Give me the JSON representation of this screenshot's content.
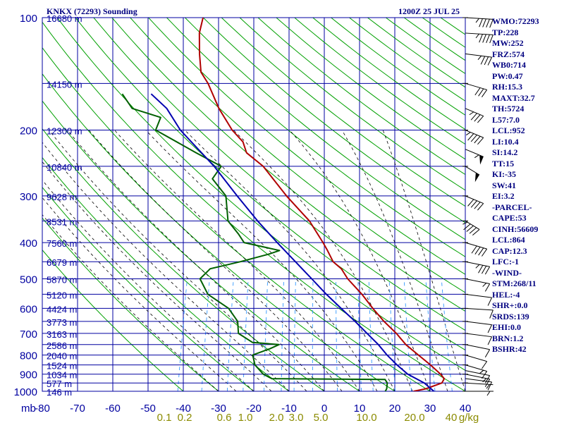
{
  "header": {
    "station": "KNKX (72293) Sounding",
    "datetime": "1200Z 25 JUL 25"
  },
  "colors": {
    "isobar": "#0000a0",
    "temperature": "#b00000",
    "dewpoint": "#006000",
    "parcel": "#0000b0",
    "dry_adiabat": "#00a000",
    "moist_adiabat": "#000000",
    "mixing_ratio": "#3399ff",
    "index_text": "#000080"
  },
  "indices": [
    "WMO:72293",
    "TP:228",
    "MW:252",
    "FRZ:574",
    "WB0:714",
    "PW:0.47",
    "RH:15.3",
    "MAXT:32.7",
    "TH:5724",
    "L57:7.0",
    "LCL:952",
    "LI:10.4",
    "SI:14.2",
    "TT:15",
    "KI:-35",
    "SW:41",
    "EI:3.2",
    "-PARCEL-",
    "CAPE:53",
    "CINH:56609",
    "LCL:864",
    "CAP:12.3",
    "LFC:-1",
    "-WIND-",
    "STM:268/11",
    "HEL:-4",
    "SHR+:0.0",
    "SRDS:139",
    "EHI:0.0",
    "BRN:1.2",
    "BSHR:42"
  ],
  "chart_data": {
    "type": "line",
    "title": "KNKX (72293) Sounding",
    "subtitle": "1200Z 25 JUL 25",
    "xlabel": "",
    "ylabel": "mb",
    "x_unit_right": "g/kg",
    "y_scale": "log",
    "y_reversed": true,
    "xlim": [
      -80,
      40
    ],
    "ylim": [
      1000,
      100
    ],
    "skew_per_log_pressure": 0.25,
    "pressure_ticks": [
      100,
      200,
      300,
      400,
      500,
      600,
      700,
      800,
      900,
      1000
    ],
    "temperature_ticks": [
      -80,
      -70,
      -60,
      -50,
      -40,
      -30,
      -20,
      -10,
      0,
      10,
      20,
      30,
      40
    ],
    "height_labels": [
      {
        "p": 100,
        "label": "16680 m"
      },
      {
        "p": 150,
        "label": "14150 m"
      },
      {
        "p": 200,
        "label": "12300 m"
      },
      {
        "p": 250,
        "label": "10840 m"
      },
      {
        "p": 300,
        "label": "9628 m"
      },
      {
        "p": 350,
        "label": "8531 m"
      },
      {
        "p": 400,
        "label": "7560 m"
      },
      {
        "p": 450,
        "label": "6679 m"
      },
      {
        "p": 500,
        "label": "5870 m"
      },
      {
        "p": 550,
        "label": "5120 m"
      },
      {
        "p": 600,
        "label": "4424 m"
      },
      {
        "p": 650,
        "label": "3773 m"
      },
      {
        "p": 700,
        "label": "3163 m"
      },
      {
        "p": 750,
        "label": "2586 m"
      },
      {
        "p": 800,
        "label": "2040 m"
      },
      {
        "p": 850,
        "label": "1524 m"
      },
      {
        "p": 900,
        "label": "1034 m"
      },
      {
        "p": 950,
        "label": "577 m"
      },
      {
        "p": 1000,
        "label": "146 m"
      }
    ],
    "mixing_ratio_labels": [
      "0.1",
      "0.2",
      "0.6",
      "1.0",
      "2.0",
      "3.0",
      "5.0",
      "10.0",
      "20.0",
      "40",
      "g/kg"
    ],
    "series": [
      {
        "name": "",
        "role": "temperature",
        "points": [
          {
            "p": 1000,
            "t": 25.3
          },
          {
            "p": 985,
            "t": 28.6
          },
          {
            "p": 950,
            "t": 32.7
          },
          {
            "p": 925,
            "t": 33.0
          },
          {
            "p": 900,
            "t": 31.6
          },
          {
            "p": 850,
            "t": 28.0
          },
          {
            "p": 800,
            "t": 23.8
          },
          {
            "p": 750,
            "t": 19.4
          },
          {
            "p": 700,
            "t": 15.8
          },
          {
            "p": 650,
            "t": 11.3
          },
          {
            "p": 600,
            "t": 7.1
          },
          {
            "p": 550,
            "t": 2.9
          },
          {
            "p": 500,
            "t": -2.4
          },
          {
            "p": 470,
            "t": -5.0
          },
          {
            "p": 450,
            "t": -7.9
          },
          {
            "p": 420,
            "t": -10.4
          },
          {
            "p": 400,
            "t": -12.3
          },
          {
            "p": 350,
            "t": -17.9
          },
          {
            "p": 300,
            "t": -26.4
          },
          {
            "p": 250,
            "t": -35.4
          },
          {
            "p": 230,
            "t": -41.2
          },
          {
            "p": 215,
            "t": -43.1
          },
          {
            "p": 200,
            "t": -47.1
          },
          {
            "p": 175,
            "t": -52.6
          },
          {
            "p": 150,
            "t": -57.7
          },
          {
            "p": 140,
            "t": -60.6
          },
          {
            "p": 125,
            "t": -62.5
          },
          {
            "p": 110,
            "t": -64.2
          },
          {
            "p": 100,
            "t": -64.4
          }
        ]
      },
      {
        "name": "",
        "role": "dewpoint",
        "points": [
          {
            "p": 1000,
            "t": 17.3
          },
          {
            "p": 985,
            "t": 17.5
          },
          {
            "p": 950,
            "t": 17.2
          },
          {
            "p": 930,
            "t": 16.3
          },
          {
            "p": 925,
            "t": -15.9
          },
          {
            "p": 900,
            "t": -18.7
          },
          {
            "p": 850,
            "t": -21.8
          },
          {
            "p": 800,
            "t": -23.2
          },
          {
            "p": 770,
            "t": -18.9
          },
          {
            "p": 750,
            "t": -16.6
          },
          {
            "p": 740,
            "t": -24.3
          },
          {
            "p": 700,
            "t": -29.0
          },
          {
            "p": 650,
            "t": -30.2
          },
          {
            "p": 600,
            "t": -33.8
          },
          {
            "p": 550,
            "t": -40.8
          },
          {
            "p": 500,
            "t": -44.3
          },
          {
            "p": 470,
            "t": -42.2
          },
          {
            "p": 450,
            "t": -34.2
          },
          {
            "p": 430,
            "t": -26.9
          },
          {
            "p": 420,
            "t": -24.0
          },
          {
            "p": 400,
            "t": -34.7
          },
          {
            "p": 380,
            "t": -36.9
          },
          {
            "p": 350,
            "t": -41.0
          },
          {
            "p": 300,
            "t": -43.6
          },
          {
            "p": 270,
            "t": -48.8
          },
          {
            "p": 250,
            "t": -47.3
          },
          {
            "p": 230,
            "t": -55.5
          },
          {
            "p": 200,
            "t": -68.8
          },
          {
            "p": 185,
            "t": -68.4
          },
          {
            "p": 175,
            "t": -77.2
          },
          {
            "p": 160,
            "t": -81.2
          }
        ]
      },
      {
        "name": "",
        "role": "parcel",
        "points": [
          {
            "p": 1000,
            "t": 31.1
          },
          {
            "p": 950,
            "t": 27.7
          },
          {
            "p": 900,
            "t": 22.3
          },
          {
            "p": 850,
            "t": 18.5
          },
          {
            "p": 800,
            "t": 14.9
          },
          {
            "p": 750,
            "t": 11.6
          },
          {
            "p": 700,
            "t": 7.5
          },
          {
            "p": 650,
            "t": 3.1
          },
          {
            "p": 600,
            "t": -1.9
          },
          {
            "p": 550,
            "t": -7.2
          },
          {
            "p": 500,
            "t": -12.6
          },
          {
            "p": 450,
            "t": -18.6
          },
          {
            "p": 400,
            "t": -25.3
          },
          {
            "p": 350,
            "t": -32.6
          },
          {
            "p": 300,
            "t": -40.4
          },
          {
            "p": 250,
            "t": -49.3
          },
          {
            "p": 200,
            "t": -61.8
          },
          {
            "p": 175,
            "t": -67.4
          },
          {
            "p": 160,
            "t": -73.0
          }
        ]
      }
    ],
    "wind_barbs": [
      {
        "p": 1000,
        "dir": 270,
        "spd": 5
      },
      {
        "p": 950,
        "dir": 280,
        "spd": 5
      },
      {
        "p": 925,
        "dir": 290,
        "spd": 10
      },
      {
        "p": 900,
        "dir": 300,
        "spd": 15
      },
      {
        "p": 880,
        "dir": 300,
        "spd": 10
      },
      {
        "p": 850,
        "dir": 310,
        "spd": 15
      },
      {
        "p": 800,
        "dir": 310,
        "spd": 10
      },
      {
        "p": 750,
        "dir": 300,
        "spd": 10
      },
      {
        "p": 700,
        "dir": 290,
        "spd": 10
      },
      {
        "p": 650,
        "dir": 290,
        "spd": 10
      },
      {
        "p": 600,
        "dir": 280,
        "spd": 10
      },
      {
        "p": 550,
        "dir": 290,
        "spd": 10
      },
      {
        "p": 500,
        "dir": 300,
        "spd": 15
      },
      {
        "p": 450,
        "dir": 300,
        "spd": 35
      },
      {
        "p": 400,
        "dir": 310,
        "spd": 40
      },
      {
        "p": 350,
        "dir": 330,
        "spd": 45
      },
      {
        "p": 300,
        "dir": 320,
        "spd": 40
      },
      {
        "p": 250,
        "dir": 330,
        "spd": 50
      },
      {
        "p": 225,
        "dir": 320,
        "spd": 55
      },
      {
        "p": 200,
        "dir": 320,
        "spd": 45
      },
      {
        "p": 175,
        "dir": 320,
        "spd": 35
      },
      {
        "p": 150,
        "dir": 310,
        "spd": 30
      },
      {
        "p": 125,
        "dir": 290,
        "spd": 35
      },
      {
        "p": 110,
        "dir": 280,
        "spd": 45
      },
      {
        "p": 100,
        "dir": 280,
        "spd": 45
      }
    ]
  }
}
